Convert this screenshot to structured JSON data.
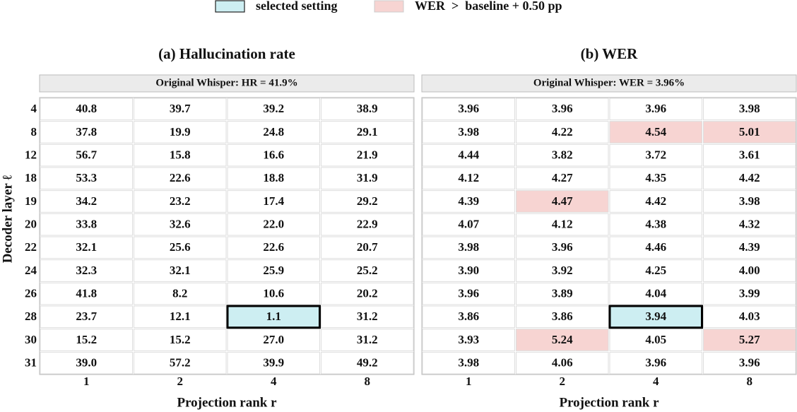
{
  "legend": [
    {
      "label": "selected setting",
      "color": "#cdeef2"
    },
    {
      "label": "WER  >  baseline + 0.50 pp",
      "color": "#f7d4d2"
    }
  ],
  "rows": [
    4,
    8,
    12,
    18,
    19,
    20,
    22,
    24,
    26,
    28,
    30,
    31
  ],
  "columns": [
    1,
    2,
    4,
    8
  ],
  "y_label": "Decoder layer ℓ",
  "x_label": "Projection rank r",
  "selected": {
    "row": 28,
    "column": 4
  },
  "panels": [
    {
      "title": "(a) Hallucination rate",
      "header": "Original Whisper: HR = 41.9%",
      "cells": [
        [
          "40.8",
          "39.7",
          "39.2",
          "38.9"
        ],
        [
          "37.8",
          "19.9",
          "24.8",
          "29.1"
        ],
        [
          "56.7",
          "15.8",
          "16.6",
          "21.9"
        ],
        [
          "53.3",
          "22.6",
          "18.8",
          "31.9"
        ],
        [
          "34.2",
          "23.2",
          "17.4",
          "29.2"
        ],
        [
          "33.8",
          "32.6",
          "22.0",
          "22.9"
        ],
        [
          "32.1",
          "25.6",
          "22.6",
          "20.7"
        ],
        [
          "32.3",
          "32.1",
          "25.9",
          "25.2"
        ],
        [
          "41.8",
          "8.2",
          "10.6",
          "20.2"
        ],
        [
          "23.7",
          "12.1",
          "1.1",
          "31.2"
        ],
        [
          "15.2",
          "15.2",
          "27.0",
          "31.2"
        ],
        [
          "39.0",
          "57.2",
          "39.9",
          "49.2"
        ]
      ],
      "flagged": []
    },
    {
      "title": "(b) WER",
      "header": "Original Whisper: WER = 3.96%",
      "cells": [
        [
          "3.96",
          "3.96",
          "3.96",
          "3.98"
        ],
        [
          "3.98",
          "4.22",
          "4.54",
          "5.01"
        ],
        [
          "4.44",
          "3.82",
          "3.72",
          "3.61"
        ],
        [
          "4.12",
          "4.27",
          "4.35",
          "4.42"
        ],
        [
          "4.39",
          "4.47",
          "4.42",
          "3.98"
        ],
        [
          "4.07",
          "4.12",
          "4.38",
          "4.32"
        ],
        [
          "3.98",
          "3.96",
          "4.46",
          "4.39"
        ],
        [
          "3.90",
          "3.92",
          "4.25",
          "4.00"
        ],
        [
          "3.96",
          "3.89",
          "4.04",
          "3.99"
        ],
        [
          "3.86",
          "3.86",
          "3.94",
          "4.03"
        ],
        [
          "3.93",
          "5.24",
          "4.05",
          "5.27"
        ],
        [
          "3.98",
          "4.06",
          "3.96",
          "3.96"
        ]
      ],
      "flagged": [
        {
          "row": 8,
          "column": 4
        },
        {
          "row": 8,
          "column": 8
        },
        {
          "row": 19,
          "column": 2
        },
        {
          "row": 30,
          "column": 2
        },
        {
          "row": 30,
          "column": 8
        }
      ]
    }
  ]
}
